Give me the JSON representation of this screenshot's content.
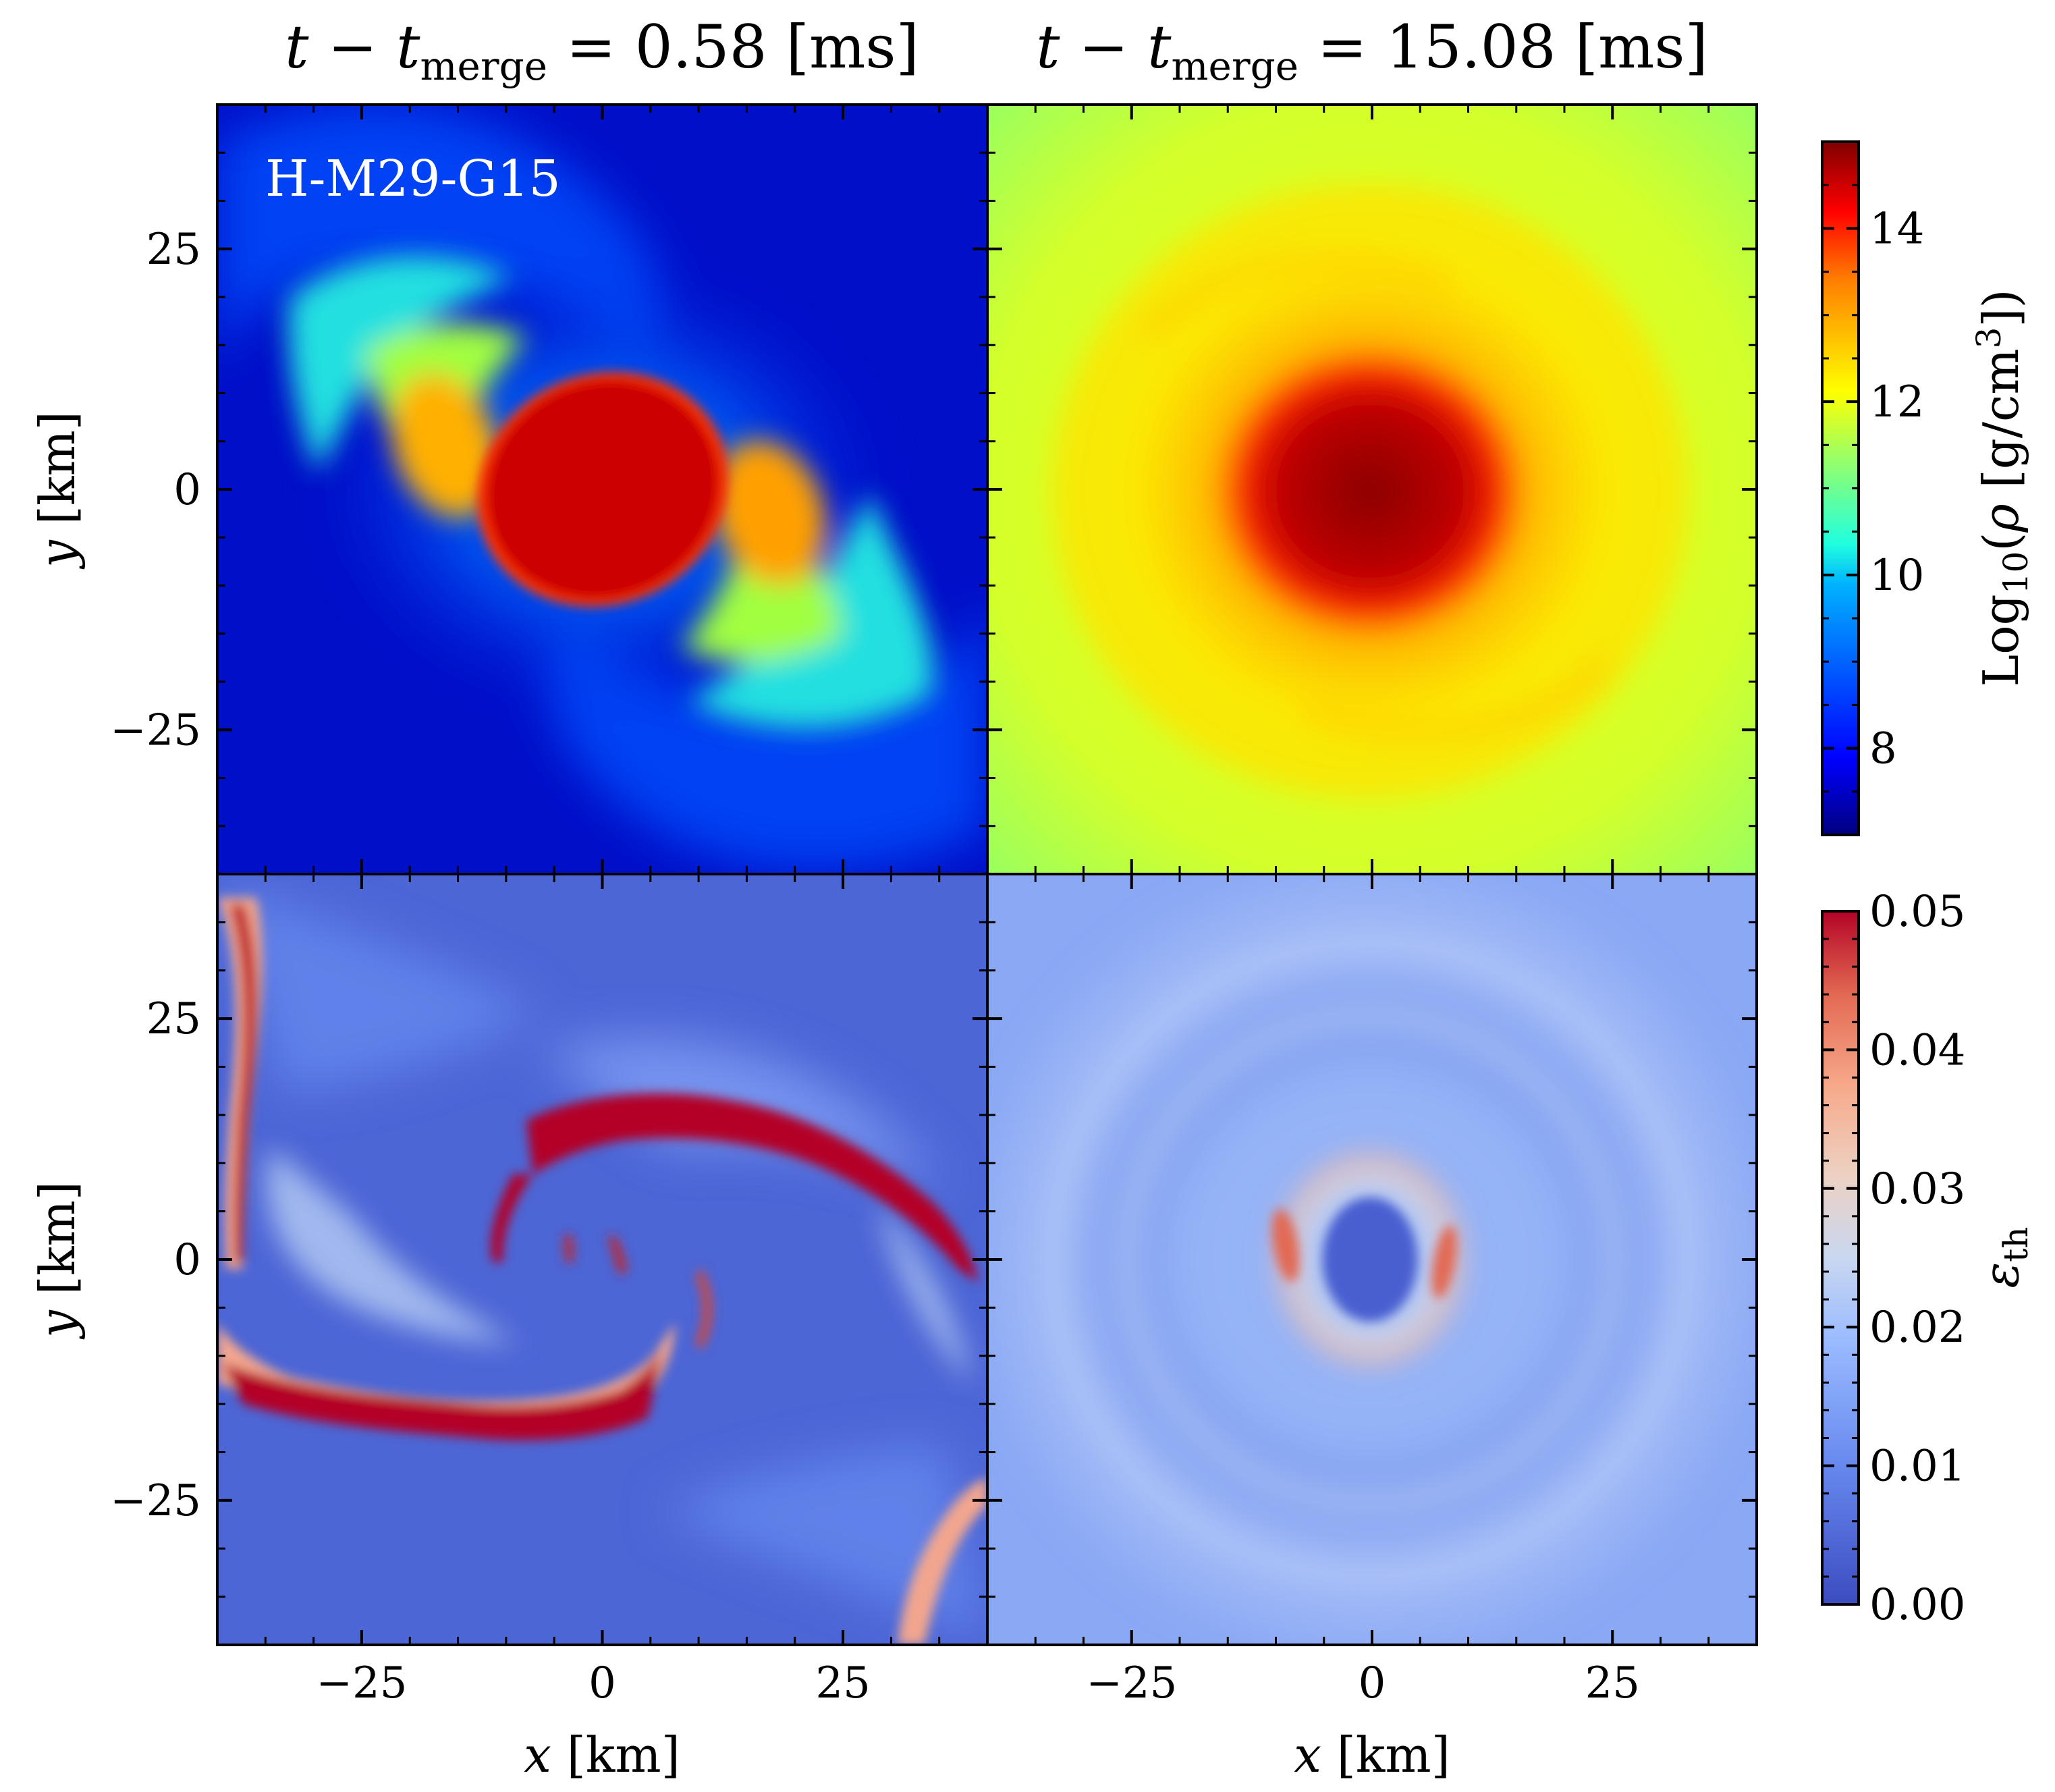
{
  "chart_data": [
    {
      "type": "heatmap",
      "panel": "top-left",
      "title": "t − t_merge = 0.58 [ms]",
      "title_parts": {
        "var": "t",
        "minus": " − ",
        "sym": "t",
        "sub": "merge",
        "rest": " = 0.58 [ms]"
      },
      "annotation": "H-M29-G15",
      "quantity": "Log10(rho [g/cm^3])",
      "xlabel": "",
      "ylabel": "y [km]",
      "xlim": [
        -40,
        40
      ],
      "ylim": [
        -40,
        40
      ],
      "structure": "rotating elliptical core with two-armed spiral; core ~14.5, arms ~10-12, background ~7.5"
    },
    {
      "type": "heatmap",
      "panel": "top-right",
      "title": "t − t_merge = 15.08 [ms]",
      "title_parts": {
        "var": "t",
        "minus": " − ",
        "sym": "t",
        "sub": "merge",
        "rest": " = 15.08 [ms]"
      },
      "quantity": "Log10(rho [g/cm^3])",
      "xlabel": "",
      "ylabel": "",
      "xlim": [
        -40,
        40
      ],
      "ylim": [
        -40,
        40
      ],
      "structure": "axisymmetric remnant; center ~14.8, envelope ~12-13, edges ~11"
    },
    {
      "type": "heatmap",
      "panel": "bottom-left",
      "quantity": "epsilon_th",
      "xlabel": "x [km]",
      "ylabel": "y [km]",
      "xlim": [
        -40,
        40
      ],
      "ylim": [
        -40,
        40
      ],
      "structure": "hot spiral shock arms ~0.05 on cold background ~0.005"
    },
    {
      "type": "heatmap",
      "panel": "bottom-right",
      "quantity": "epsilon_th",
      "xlabel": "x [km]",
      "ylabel": "",
      "xlim": [
        -40,
        40
      ],
      "ylim": [
        -40,
        40
      ],
      "structure": "cold core ~0.002 surrounded by warm ring ~0.03, disk ~0.012"
    }
  ],
  "axes": {
    "x_ticks": [
      {
        "value": -25,
        "label": "−25"
      },
      {
        "value": 0,
        "label": "0"
      },
      {
        "value": 25,
        "label": "25"
      }
    ],
    "y_ticks": [
      {
        "value": 25,
        "label": "25"
      },
      {
        "value": 0,
        "label": "0"
      },
      {
        "value": -25,
        "label": "−25"
      }
    ],
    "minor_step": 5,
    "xlabel_var": "x",
    "ylabel_var": "y",
    "unit": " [km]"
  },
  "colorbar_density": {
    "label_prefix": "Log",
    "label_sub": "10",
    "label_mid": "(",
    "label_rho": "ρ",
    "label_unit": " [g/cm",
    "label_sup": "3",
    "label_end": "])",
    "range": [
      7,
      15
    ],
    "ticks": [
      {
        "value": 8,
        "label": "8"
      },
      {
        "value": 10,
        "label": "10"
      },
      {
        "value": 12,
        "label": "12"
      },
      {
        "value": 14,
        "label": "14"
      }
    ],
    "colormap": "jet",
    "stops": [
      "#00007f",
      "#0000ff",
      "#007fff",
      "#00ffff",
      "#7fff7f",
      "#ffff00",
      "#ff7f00",
      "#ff0000",
      "#7f0000"
    ]
  },
  "colorbar_thermal": {
    "label_sym": "ε",
    "label_sub": "th",
    "range": [
      0,
      0.05
    ],
    "ticks": [
      {
        "value": 0,
        "label": "0.00"
      },
      {
        "value": 0.01,
        "label": "0.01"
      },
      {
        "value": 0.02,
        "label": "0.02"
      },
      {
        "value": 0.03,
        "label": "0.03"
      },
      {
        "value": 0.04,
        "label": "0.04"
      },
      {
        "value": 0.05,
        "label": "0.05"
      }
    ],
    "colormap": "coolwarm",
    "stops": [
      "#3b4cc0",
      "#6788ee",
      "#9abbff",
      "#c9d7f0",
      "#edd1c2",
      "#f7a889",
      "#e26952",
      "#b40426"
    ]
  }
}
